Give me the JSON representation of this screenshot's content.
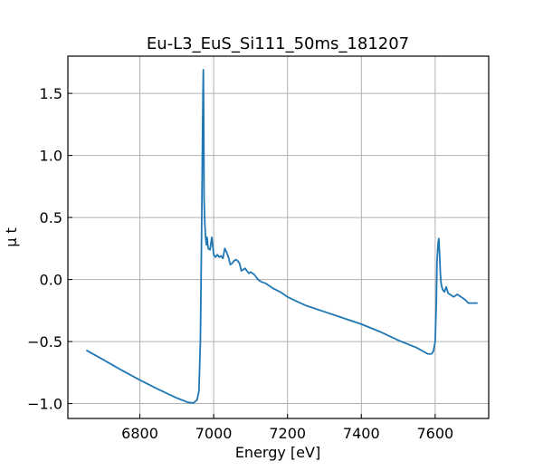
{
  "chart_data": {
    "type": "line",
    "title": "Eu-L3_EuS_Si111_50ms_181207",
    "xlabel": "Energy [eV]",
    "ylabel": "μ t",
    "xlim": [
      6605,
      7745
    ],
    "ylim": [
      -1.12,
      1.8
    ],
    "xticks": [
      6800,
      7000,
      7200,
      7400,
      7600
    ],
    "xtick_labels": [
      "6800",
      "7000",
      "7200",
      "7400",
      "7600"
    ],
    "yticks": [
      -1.0,
      -0.5,
      0.0,
      0.5,
      1.0,
      1.5
    ],
    "ytick_labels": [
      "−1.0",
      "−0.5",
      "0.0",
      "0.5",
      "1.0",
      "1.5"
    ],
    "grid": true,
    "color": "#1f77b4",
    "series": [
      {
        "x": [
          6655,
          6700,
          6750,
          6800,
          6850,
          6900,
          6930,
          6945,
          6955,
          6960,
          6964,
          6967,
          6969,
          6971,
          6972,
          6973,
          6974,
          6976,
          6978,
          6980,
          6982,
          6985,
          6990,
          6995,
          7000,
          7005,
          7010,
          7015,
          7020,
          7025,
          7030,
          7035,
          7040,
          7045,
          7050,
          7055,
          7060,
          7065,
          7070,
          7075,
          7080,
          7085,
          7090,
          7095,
          7100,
          7105,
          7110,
          7120,
          7130,
          7140,
          7150,
          7160,
          7180,
          7200,
          7220,
          7250,
          7300,
          7350,
          7400,
          7450,
          7500,
          7550,
          7580,
          7590,
          7595,
          7600,
          7603,
          7605,
          7608,
          7610,
          7612,
          7614,
          7616,
          7618,
          7620,
          7625,
          7630,
          7635,
          7640,
          7645,
          7650,
          7660,
          7670,
          7680,
          7690,
          7700,
          7705,
          7715
        ],
        "y": [
          -0.57,
          -0.645,
          -0.73,
          -0.81,
          -0.885,
          -0.955,
          -0.99,
          -0.995,
          -0.97,
          -0.9,
          -0.5,
          0.3,
          0.9,
          1.5,
          1.69,
          1.3,
          0.65,
          0.45,
          0.35,
          0.28,
          0.34,
          0.25,
          0.24,
          0.34,
          0.2,
          0.18,
          0.2,
          0.18,
          0.19,
          0.17,
          0.25,
          0.22,
          0.18,
          0.12,
          0.13,
          0.15,
          0.16,
          0.15,
          0.13,
          0.07,
          0.08,
          0.09,
          0.07,
          0.05,
          0.06,
          0.05,
          0.04,
          0.0,
          -0.02,
          -0.03,
          -0.05,
          -0.07,
          -0.1,
          -0.14,
          -0.17,
          -0.21,
          -0.26,
          -0.31,
          -0.36,
          -0.42,
          -0.49,
          -0.55,
          -0.6,
          -0.6,
          -0.58,
          -0.5,
          -0.2,
          0.15,
          0.3,
          0.33,
          0.2,
          0.05,
          -0.03,
          -0.06,
          -0.08,
          -0.1,
          -0.06,
          -0.11,
          -0.12,
          -0.13,
          -0.14,
          -0.12,
          -0.14,
          -0.16,
          -0.19,
          -0.19,
          -0.19,
          -0.19
        ]
      }
    ]
  }
}
